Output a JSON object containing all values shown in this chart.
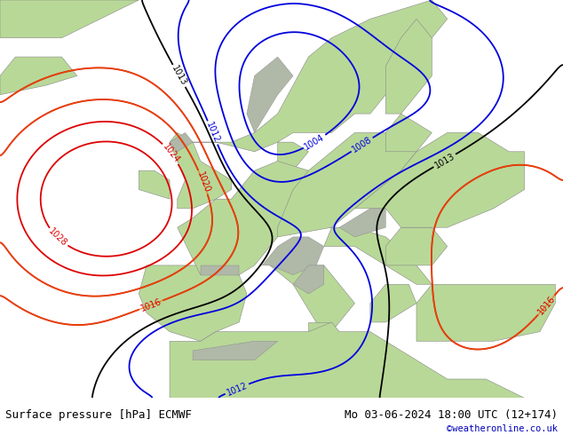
{
  "title_left": "Surface pressure [hPa] ECMWF",
  "title_right": "Mo 03-06-2024 18:00 UTC (12+174)",
  "credit": "©weatheronline.co.uk",
  "sea_color": "#d8d8d8",
  "land_color": "#b8d898",
  "bottom_bar_color": "#c8c8c8",
  "text_color": "#000000",
  "credit_color": "#0000bb",
  "font_size_bottom": 9,
  "red_levels": [
    1016,
    1020,
    1024,
    1028
  ],
  "blue_levels": [
    1004,
    1008,
    1012
  ],
  "black_levels": [
    1013
  ],
  "orange_levels": [
    1016,
    1020
  ],
  "red_color": "#dd0000",
  "blue_color": "#0000dd",
  "black_color": "#000000",
  "orange_color": "#ee6600"
}
